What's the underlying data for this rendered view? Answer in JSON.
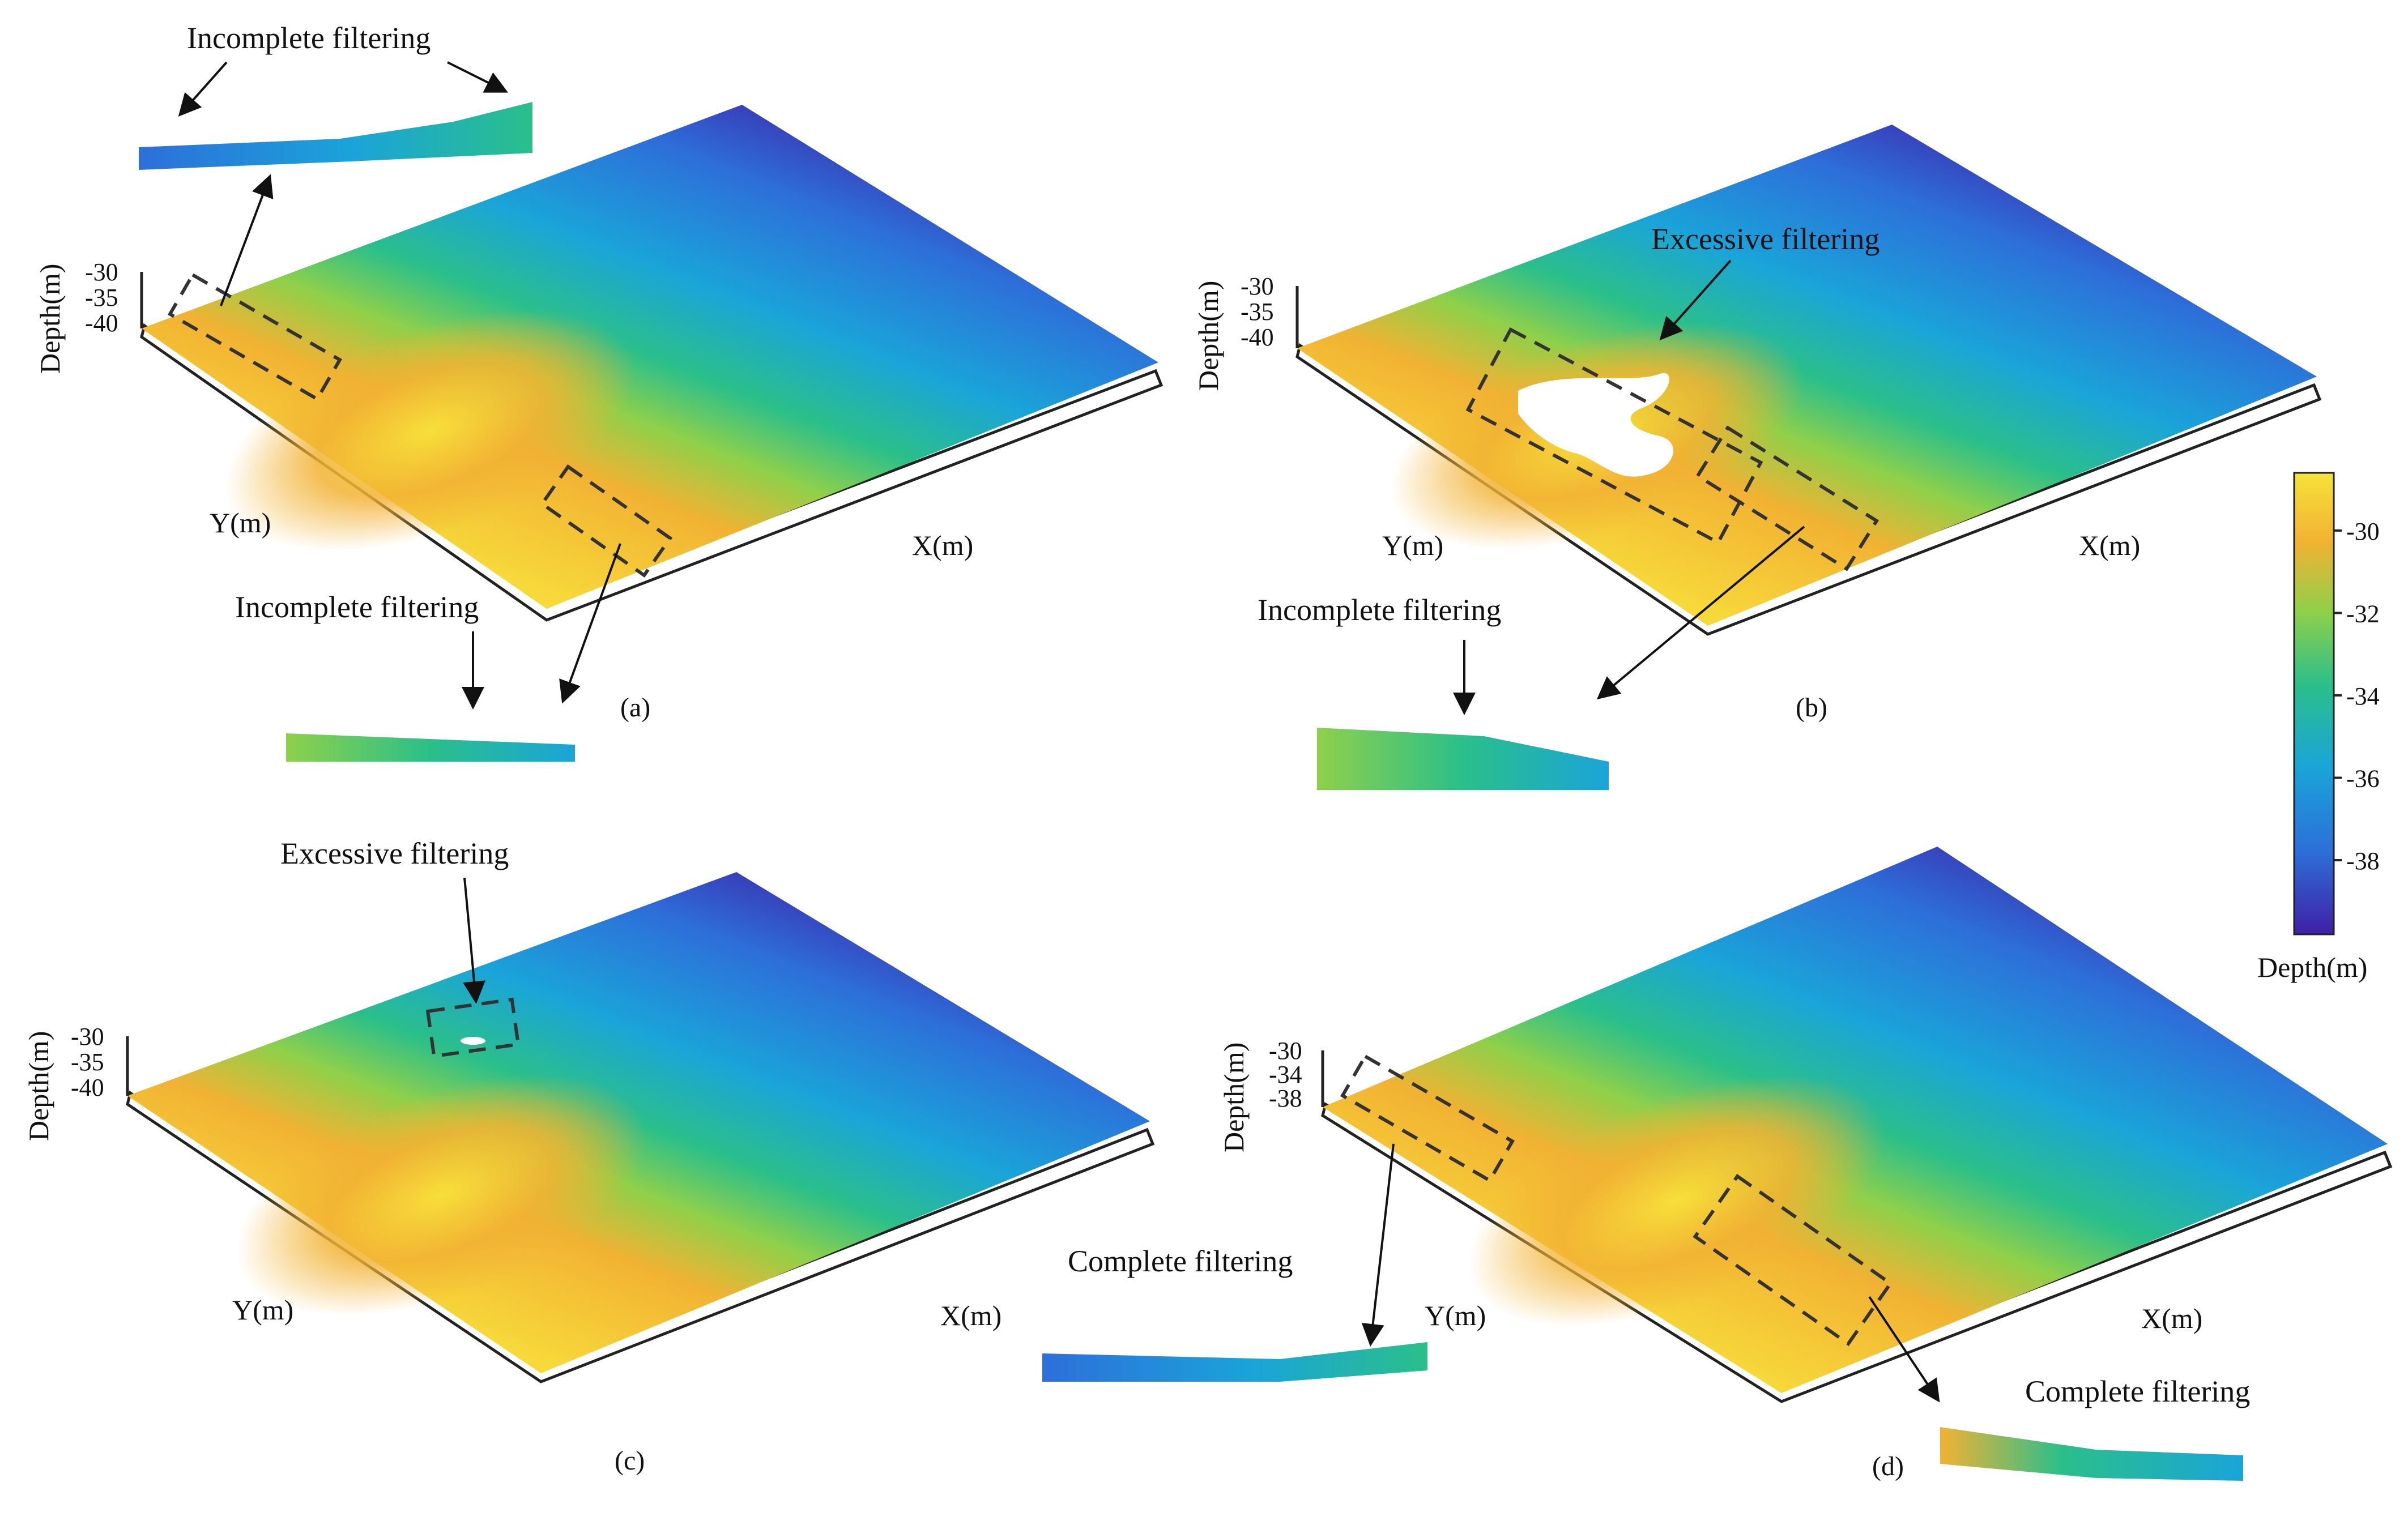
{
  "chart_data": [
    {
      "type": "heatmap",
      "panel": "(a)",
      "xlabel": "X(m)",
      "ylabel": "Y(m)",
      "zlabel": "Depth(m)",
      "z_ticks": [
        "-30",
        "-35",
        "-40"
      ],
      "annotations": [
        "Incomplete filtering",
        "Incomplete filtering"
      ]
    },
    {
      "type": "heatmap",
      "panel": "(b)",
      "xlabel": "X(m)",
      "ylabel": "Y(m)",
      "zlabel": "Depth(m)",
      "z_ticks": [
        "-30",
        "-35",
        "-40"
      ],
      "annotations": [
        "Excessive filtering",
        "Incomplete filtering"
      ]
    },
    {
      "type": "heatmap",
      "panel": "(c)",
      "xlabel": "X(m)",
      "ylabel": "Y(m)",
      "zlabel": "Depth(m)",
      "z_ticks": [
        "-30",
        "-35",
        "-40"
      ],
      "annotations": [
        "Excessive filtering"
      ]
    },
    {
      "type": "heatmap",
      "panel": "(d)",
      "xlabel": "X(m)",
      "ylabel": "Y(m)",
      "zlabel": "Depth(m)",
      "z_ticks": [
        "-30",
        "-34",
        "-38"
      ],
      "annotations": [
        "Complete filtering",
        "Complete filtering"
      ]
    }
  ],
  "colorbar": {
    "label": "Depth(m)",
    "ticks": [
      "-30",
      "-32",
      "-34",
      "-36",
      "-38"
    ],
    "tick_values": [
      -30,
      -32,
      -34,
      -36,
      -38
    ],
    "range": [
      -39.8,
      -28.6
    ],
    "colors": [
      "#3f1fa6",
      "#2d6fd9",
      "#1aa4d9",
      "#2bbf8a",
      "#8fd04a",
      "#f2b233",
      "#f7e23a"
    ]
  }
}
